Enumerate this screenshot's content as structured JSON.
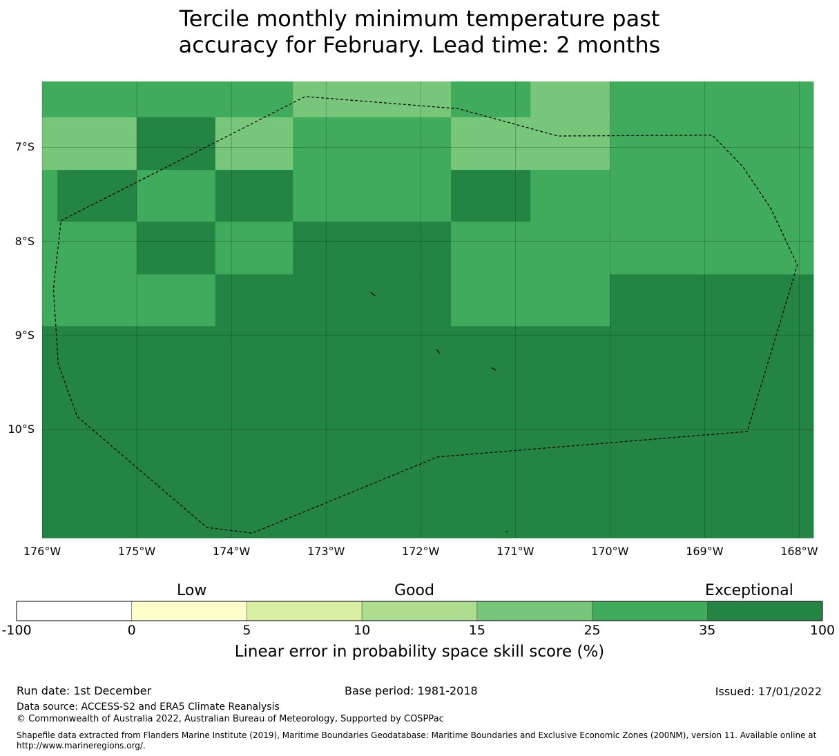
{
  "title": {
    "line1": "Tercile monthly minimum temperature past",
    "line2": "accuracy for February. Lead time: 2 months"
  },
  "map": {
    "lon_range": [
      -176,
      -167.85
    ],
    "lat_range": [
      -11.15,
      -6.3
    ],
    "lat_ticks": [
      {
        "value": -7,
        "label": "7°S"
      },
      {
        "value": -8,
        "label": "8°S"
      },
      {
        "value": -9,
        "label": "9°S"
      },
      {
        "value": -10,
        "label": "10°S"
      }
    ],
    "lon_ticks": [
      {
        "value": -176,
        "label": "176°W"
      },
      {
        "value": -175,
        "label": "175°W"
      },
      {
        "value": -174,
        "label": "174°W"
      },
      {
        "value": -173,
        "label": "173°W"
      },
      {
        "value": -172,
        "label": "172°W"
      },
      {
        "value": -171,
        "label": "171°W"
      },
      {
        "value": -170,
        "label": "170°W"
      },
      {
        "value": -169,
        "label": "169°W"
      },
      {
        "value": -168,
        "label": "168°W"
      }
    ],
    "cells": [
      {
        "lon": [
          -176,
          -173.35
        ],
        "lat": [
          -6.3,
          -6.68
        ],
        "category": 5
      },
      {
        "lon": [
          -173.35,
          -171.68
        ],
        "lat": [
          -6.3,
          -6.68
        ],
        "category": 4
      },
      {
        "lon": [
          -171.68,
          -170.84
        ],
        "lat": [
          -6.3,
          -6.68
        ],
        "category": 5
      },
      {
        "lon": [
          -170.84,
          -170
        ],
        "lat": [
          -6.3,
          -6.68
        ],
        "category": 4
      },
      {
        "lon": [
          -170,
          -167.85
        ],
        "lat": [
          -6.3,
          -6.68
        ],
        "category": 5
      },
      {
        "lon": [
          -176,
          -175.0
        ],
        "lat": [
          -6.68,
          -7.24
        ],
        "category": 4
      },
      {
        "lon": [
          -175.0,
          -174.17
        ],
        "lat": [
          -6.68,
          -7.24
        ],
        "category": 6
      },
      {
        "lon": [
          -174.17,
          -173.35
        ],
        "lat": [
          -6.68,
          -7.24
        ],
        "category": 4
      },
      {
        "lon": [
          -173.35,
          -171.68
        ],
        "lat": [
          -6.68,
          -7.24
        ],
        "category": 5
      },
      {
        "lon": [
          -171.68,
          -170
        ],
        "lat": [
          -6.68,
          -7.24
        ],
        "category": 4
      },
      {
        "lon": [
          -170,
          -167.85
        ],
        "lat": [
          -6.68,
          -7.24
        ],
        "category": 5
      },
      {
        "lon": [
          -176,
          -175.84
        ],
        "lat": [
          -7.24,
          -7.79
        ],
        "category": 5
      },
      {
        "lon": [
          -175.84,
          -175.0
        ],
        "lat": [
          -7.24,
          -7.79
        ],
        "category": 6
      },
      {
        "lon": [
          -175.0,
          -174.17
        ],
        "lat": [
          -7.24,
          -7.79
        ],
        "category": 5
      },
      {
        "lon": [
          -174.17,
          -173.35
        ],
        "lat": [
          -7.24,
          -7.79
        ],
        "category": 6
      },
      {
        "lon": [
          -173.35,
          -171.68
        ],
        "lat": [
          -7.24,
          -7.79
        ],
        "category": 5
      },
      {
        "lon": [
          -171.68,
          -170.84
        ],
        "lat": [
          -7.24,
          -7.79
        ],
        "category": 6
      },
      {
        "lon": [
          -170.84,
          -167.85
        ],
        "lat": [
          -7.24,
          -7.79
        ],
        "category": 5
      },
      {
        "lon": [
          -176,
          -175.0
        ],
        "lat": [
          -7.79,
          -8.35
        ],
        "category": 5
      },
      {
        "lon": [
          -175.0,
          -174.17
        ],
        "lat": [
          -7.79,
          -8.35
        ],
        "category": 6
      },
      {
        "lon": [
          -174.17,
          -173.35
        ],
        "lat": [
          -7.79,
          -8.35
        ],
        "category": 5
      },
      {
        "lon": [
          -173.35,
          -171.68
        ],
        "lat": [
          -7.79,
          -8.35
        ],
        "category": 6
      },
      {
        "lon": [
          -171.68,
          -167.85
        ],
        "lat": [
          -7.79,
          -8.35
        ],
        "category": 5
      },
      {
        "lon": [
          -176,
          -174.17
        ],
        "lat": [
          -8.35,
          -8.9
        ],
        "category": 5
      },
      {
        "lon": [
          -174.17,
          -171.68
        ],
        "lat": [
          -8.35,
          -8.9
        ],
        "category": 6
      },
      {
        "lon": [
          -171.68,
          -170
        ],
        "lat": [
          -8.35,
          -8.9
        ],
        "category": 5
      },
      {
        "lon": [
          -170,
          -167.85
        ],
        "lat": [
          -8.35,
          -8.9
        ],
        "category": 6
      },
      {
        "lon": [
          -176,
          -167.85
        ],
        "lat": [
          -8.9,
          -11.15
        ],
        "category": 6
      }
    ],
    "eez_boundary": [
      [
        -175.8,
        -7.78
      ],
      [
        -173.22,
        -6.46
      ],
      [
        -171.6,
        -6.59
      ],
      [
        -170.55,
        -6.88
      ],
      [
        -168.92,
        -6.87
      ],
      [
        -168.6,
        -7.2
      ],
      [
        -168.3,
        -7.65
      ],
      [
        -168.02,
        -8.25
      ],
      [
        -168.55,
        -10.02
      ],
      [
        -171.82,
        -10.29
      ],
      [
        -173.78,
        -11.1
      ],
      [
        -174.26,
        -11.04
      ],
      [
        -175.63,
        -9.86
      ],
      [
        -175.83,
        -9.3
      ],
      [
        -175.88,
        -8.5
      ],
      [
        -175.8,
        -7.78
      ]
    ],
    "islands": [
      [
        [
          -172.53,
          -8.54
        ],
        [
          -172.48,
          -8.58
        ]
      ],
      [
        [
          -171.83,
          -9.15
        ],
        [
          -171.8,
          -9.19
        ]
      ],
      [
        [
          -171.25,
          -9.34
        ],
        [
          -171.21,
          -9.37
        ]
      ],
      [
        [
          -171.1,
          -11.08
        ],
        [
          -171.08,
          -11.09
        ]
      ]
    ]
  },
  "colorbar": {
    "categories": [
      {
        "label": "Low",
        "position": "left"
      },
      {
        "label": "Good",
        "position": "center"
      },
      {
        "label": "Exceptional",
        "position": "right"
      }
    ],
    "ticks": [
      "-100",
      "0",
      "5",
      "10",
      "15",
      "25",
      "35",
      "100"
    ],
    "colors": [
      "#ffffff",
      "#ffffcc",
      "#d9f0a3",
      "#addd8e",
      "#78c679",
      "#41ab5d",
      "#238443"
    ],
    "label": "Linear error in probability space skill score (%)"
  },
  "footer": {
    "run_date": "Run date: 1st December",
    "base_period": "Base period: 1981-2018",
    "issued": "Issued: 17/01/2022",
    "data_source": "Data source: ACCESS-S2 and ERA5 Climate Reanalysis",
    "copyright": "© Commonwealth of Australia 2022, Australian Bureau of Meteorology, Supported by COSPPac",
    "shapefile": "Shapefile data extracted from Flanders Marine Institute (2019), Maritime Boundaries Geodatabase: Maritime Boundaries and Exclusive Economic Zones (200NM), version 11. Available online at http://www.marineregions.org/."
  }
}
